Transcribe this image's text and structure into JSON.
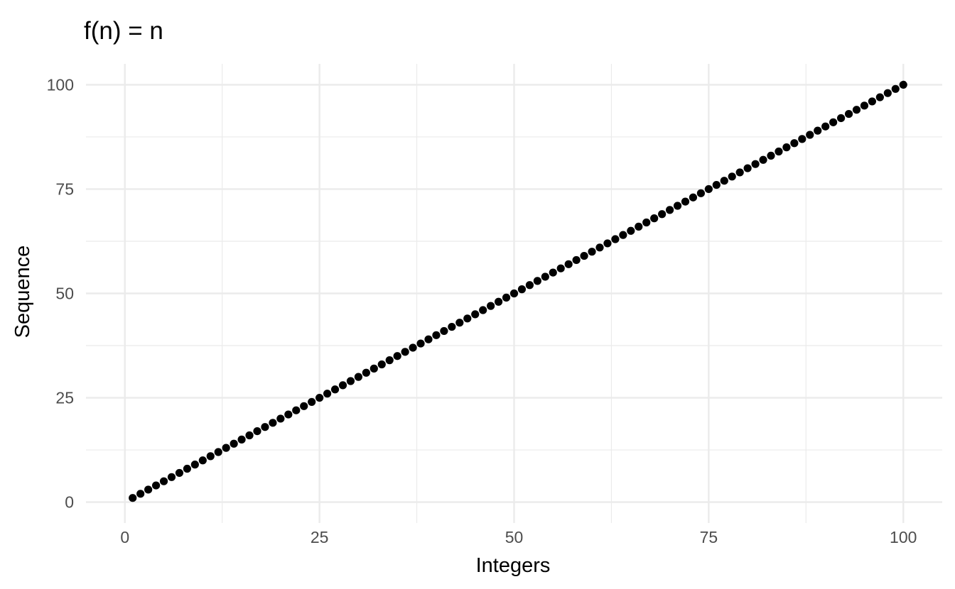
{
  "chart_data": {
    "type": "scatter",
    "title": "f(n) = n",
    "xlabel": "Integers",
    "ylabel": "Sequence",
    "xlim": [
      -5,
      105
    ],
    "ylim": [
      -5,
      105
    ],
    "x_ticks": [
      0,
      25,
      50,
      75,
      100
    ],
    "y_ticks": [
      0,
      25,
      50,
      75,
      100
    ],
    "x_minor_ticks": [
      12.5,
      37.5,
      62.5,
      87.5
    ],
    "y_minor_ticks": [
      12.5,
      37.5,
      62.5,
      87.5
    ],
    "grid": true,
    "legend": "none",
    "point_color": "#000000",
    "series": [
      {
        "x": [
          1,
          2,
          3,
          4,
          5,
          6,
          7,
          8,
          9,
          10,
          11,
          12,
          13,
          14,
          15,
          16,
          17,
          18,
          19,
          20,
          21,
          22,
          23,
          24,
          25,
          26,
          27,
          28,
          29,
          30,
          31,
          32,
          33,
          34,
          35,
          36,
          37,
          38,
          39,
          40,
          41,
          42,
          43,
          44,
          45,
          46,
          47,
          48,
          49,
          50,
          51,
          52,
          53,
          54,
          55,
          56,
          57,
          58,
          59,
          60,
          61,
          62,
          63,
          64,
          65,
          66,
          67,
          68,
          69,
          70,
          71,
          72,
          73,
          74,
          75,
          76,
          77,
          78,
          79,
          80,
          81,
          82,
          83,
          84,
          85,
          86,
          87,
          88,
          89,
          90,
          91,
          92,
          93,
          94,
          95,
          96,
          97,
          98,
          99,
          100
        ],
        "y": [
          1,
          2,
          3,
          4,
          5,
          6,
          7,
          8,
          9,
          10,
          11,
          12,
          13,
          14,
          15,
          16,
          17,
          18,
          19,
          20,
          21,
          22,
          23,
          24,
          25,
          26,
          27,
          28,
          29,
          30,
          31,
          32,
          33,
          34,
          35,
          36,
          37,
          38,
          39,
          40,
          41,
          42,
          43,
          44,
          45,
          46,
          47,
          48,
          49,
          50,
          51,
          52,
          53,
          54,
          55,
          56,
          57,
          58,
          59,
          60,
          61,
          62,
          63,
          64,
          65,
          66,
          67,
          68,
          69,
          70,
          71,
          72,
          73,
          74,
          75,
          76,
          77,
          78,
          79,
          80,
          81,
          82,
          83,
          84,
          85,
          86,
          87,
          88,
          89,
          90,
          91,
          92,
          93,
          94,
          95,
          96,
          97,
          98,
          99,
          100
        ]
      }
    ]
  }
}
